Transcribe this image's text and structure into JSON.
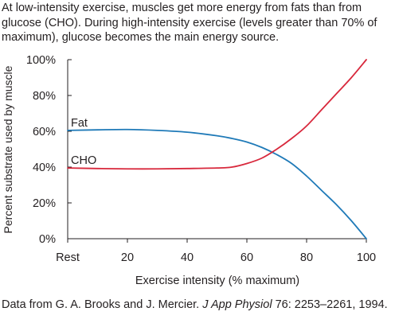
{
  "caption": "At low-intensity exercise, muscles get more energy from fats than from glucose (CHO). During high-intensity exercise (levels greater than 70% of maximum), glucose becomes the main energy source.",
  "credit": {
    "prefix": "Data from G. A. Brooks and J. Mercier. ",
    "journal": "J App Physiol",
    "suffix": " 76: 2253–2261, 1994."
  },
  "chart_data": {
    "type": "line",
    "title": "",
    "xlabel": "Exercise intensity (% maximum)",
    "ylabel": "Percent substrate used by muscle",
    "xlim": [
      0,
      100
    ],
    "ylim": [
      0,
      100
    ],
    "x_ticks": [
      0,
      20,
      40,
      60,
      80,
      100
    ],
    "x_tick_labels": [
      "Rest",
      "20",
      "40",
      "60",
      "80",
      "100"
    ],
    "y_ticks": [
      0,
      20,
      40,
      60,
      80,
      100
    ],
    "y_tick_labels": [
      "0%",
      "20%",
      "40%",
      "60%",
      "80%",
      "100%"
    ],
    "grid": false,
    "legend": "inline labels",
    "series": [
      {
        "name": "Fat",
        "color": "#1f7ab8",
        "x": [
          0,
          10,
          20,
          30,
          40,
          50,
          55,
          60,
          65,
          70,
          75,
          80,
          85,
          90,
          95,
          100
        ],
        "y": [
          60.5,
          60.8,
          61,
          60.5,
          59.5,
          57.5,
          56,
          54,
          51,
          47,
          42,
          35,
          27,
          19,
          10,
          0
        ]
      },
      {
        "name": "CHO",
        "color": "#d8283c",
        "x": [
          0,
          10,
          20,
          30,
          40,
          50,
          55,
          60,
          65,
          70,
          75,
          80,
          85,
          90,
          95,
          100
        ],
        "y": [
          39.5,
          39.2,
          39,
          39,
          39.2,
          39.5,
          40,
          42,
          45,
          50,
          56,
          63,
          72,
          81,
          90,
          100
        ]
      }
    ]
  }
}
